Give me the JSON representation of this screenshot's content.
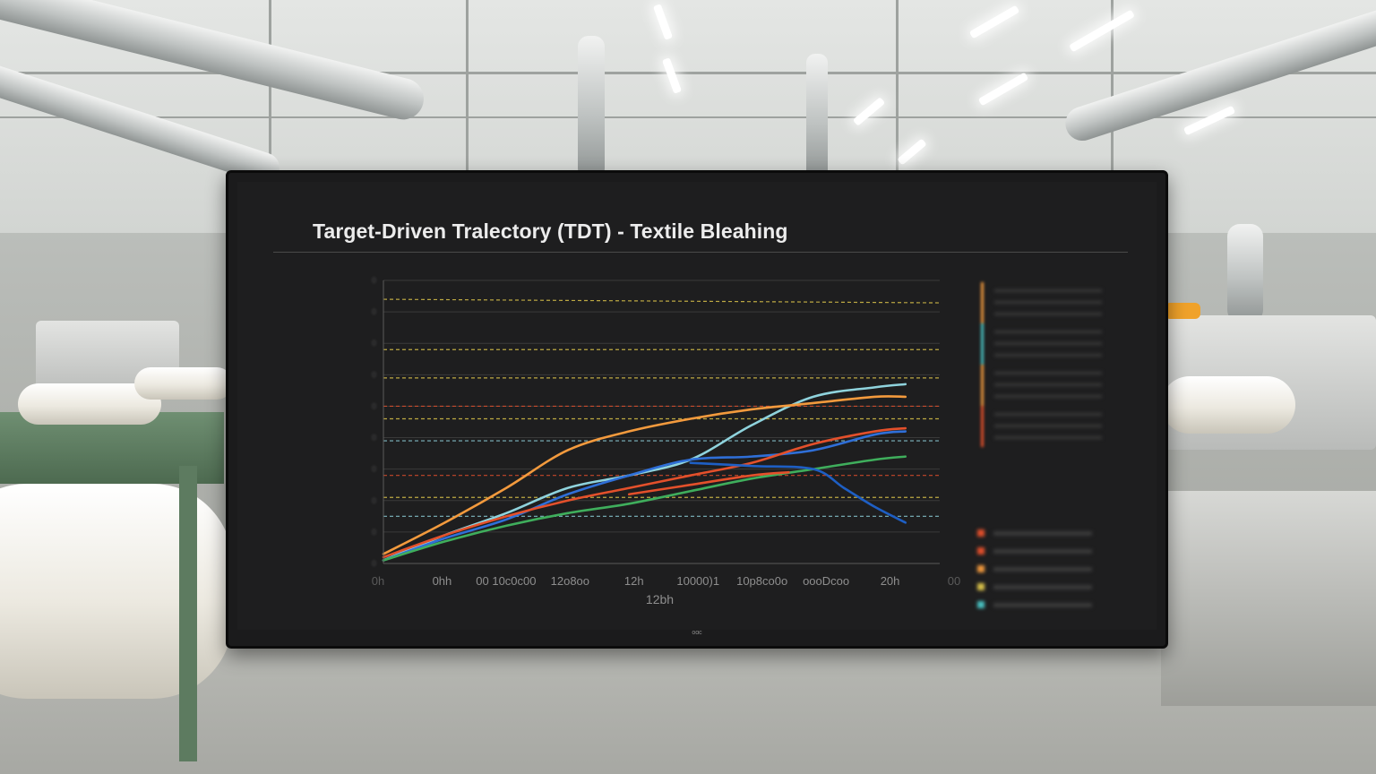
{
  "chart_data": {
    "type": "line",
    "title": "Target-Driven Tralectory (TDT) - Textile Bleahing",
    "xlabel": "12bh",
    "ylabel": "",
    "x_ticks": [
      "0h",
      "0hh",
      "00 10c0c00",
      "12o8oo",
      "12h",
      "10000)1",
      "10p8co0o",
      "oooDcoo",
      "20h",
      "00"
    ],
    "ylim": [
      0,
      9
    ],
    "xlim": [
      0,
      9
    ],
    "grid": true,
    "legend_placement": "right",
    "series": [
      {
        "color": "#8fd3dd",
        "values": [
          [
            0,
            0.1
          ],
          [
            1,
            0.9
          ],
          [
            2,
            1.6
          ],
          [
            3,
            2.4
          ],
          [
            4,
            2.8
          ],
          [
            5,
            3.3
          ],
          [
            6,
            4.4
          ],
          [
            7,
            5.3
          ],
          [
            8,
            5.6
          ],
          [
            8.5,
            5.7
          ]
        ]
      },
      {
        "color": "#f39a3d",
        "values": [
          [
            0,
            0.3
          ],
          [
            1,
            1.3
          ],
          [
            2,
            2.4
          ],
          [
            3,
            3.6
          ],
          [
            4,
            4.2
          ],
          [
            5,
            4.6
          ],
          [
            6,
            4.9
          ],
          [
            7,
            5.1
          ],
          [
            8,
            5.3
          ],
          [
            8.5,
            5.3
          ]
        ]
      },
      {
        "color": "#2f6fd8",
        "values": [
          [
            0,
            0.1
          ],
          [
            1,
            0.8
          ],
          [
            2,
            1.4
          ],
          [
            3,
            2.2
          ],
          [
            4,
            2.8
          ],
          [
            5,
            3.3
          ],
          [
            6,
            3.4
          ],
          [
            7,
            3.6
          ],
          [
            8,
            4.1
          ],
          [
            8.5,
            4.2
          ]
        ]
      },
      {
        "color": "#e4502b",
        "values": [
          [
            0,
            0.2
          ],
          [
            1,
            0.9
          ],
          [
            2,
            1.5
          ],
          [
            3,
            2.0
          ],
          [
            4,
            2.4
          ],
          [
            5,
            2.8
          ],
          [
            6,
            3.2
          ],
          [
            7,
            3.8
          ],
          [
            8,
            4.2
          ],
          [
            8.5,
            4.3
          ]
        ]
      },
      {
        "color": "#3fae5c",
        "values": [
          [
            0,
            0.1
          ],
          [
            1,
            0.7
          ],
          [
            2,
            1.2
          ],
          [
            3,
            1.6
          ],
          [
            4,
            1.9
          ],
          [
            5,
            2.3
          ],
          [
            6,
            2.7
          ],
          [
            7,
            3.0
          ],
          [
            8,
            3.3
          ],
          [
            8.5,
            3.4
          ]
        ]
      },
      {
        "color": "#1e5fc4",
        "values": [
          [
            5,
            3.2
          ],
          [
            6,
            3.1
          ],
          [
            7,
            3.0
          ],
          [
            7.5,
            2.4
          ],
          [
            8,
            1.8
          ],
          [
            8.5,
            1.3
          ]
        ]
      },
      {
        "color": "#e4502b",
        "values": [
          [
            4,
            2.2
          ],
          [
            5,
            2.5
          ],
          [
            6,
            2.8
          ],
          [
            6.6,
            2.9
          ]
        ]
      }
    ],
    "reference_lines": [
      {
        "y": 8.4,
        "color": "#d9c24a"
      },
      {
        "y": 6.8,
        "color": "#d9c24a"
      },
      {
        "y": 5.9,
        "color": "#d9c24a"
      },
      {
        "y": 5.0,
        "color": "#e4502b"
      },
      {
        "y": 4.6,
        "color": "#d9c24a"
      },
      {
        "y": 3.9,
        "color": "#8fd3dd"
      },
      {
        "y": 2.8,
        "color": "#e4502b"
      },
      {
        "y": 2.1,
        "color": "#d9c24a"
      },
      {
        "y": 1.5,
        "color": "#8fd3dd"
      }
    ]
  },
  "legend": {
    "top_bars": [
      "#f39a3d",
      "#49c2c2",
      "#f39a3d",
      "#e4502b"
    ],
    "bottom_squares": [
      "#e4502b",
      "#e4502b",
      "#f39a3d",
      "#d9c24a",
      "#49c2c2"
    ]
  },
  "monitor_brand": "oɑc"
}
